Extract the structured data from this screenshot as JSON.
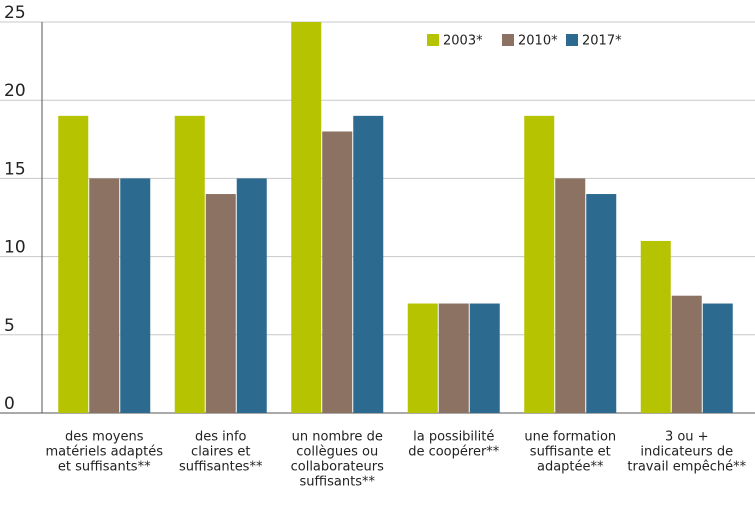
{
  "chart_data": {
    "type": "bar",
    "categories": [
      [
        "des moyens",
        "matériels adaptés",
        "et suffisants**"
      ],
      [
        "des info",
        "claires et",
        "suffisantes**"
      ],
      [
        "un nombre de",
        "collègues ou",
        "collaborateurs",
        "suffisants**"
      ],
      [
        "la possibilité",
        "de coopérer**"
      ],
      [
        "une formation",
        "suffisante et",
        "adaptée**"
      ],
      [
        "3 ou +",
        "indicateurs de",
        "travail empêché**"
      ]
    ],
    "series": [
      {
        "name": "2003*",
        "color": "#b5c300",
        "values": [
          19,
          19,
          25,
          7,
          19,
          11
        ]
      },
      {
        "name": "2010*",
        "color": "#8c7262",
        "values": [
          15,
          14,
          18,
          7,
          15,
          7.5
        ]
      },
      {
        "name": "2017*",
        "color": "#2d6a8f",
        "values": [
          15,
          15,
          19,
          7,
          14,
          7
        ]
      }
    ],
    "ylim": [
      0,
      25
    ],
    "yticks": [
      0,
      5,
      10,
      15,
      20,
      25
    ],
    "grid": true,
    "legend": "top-right"
  }
}
